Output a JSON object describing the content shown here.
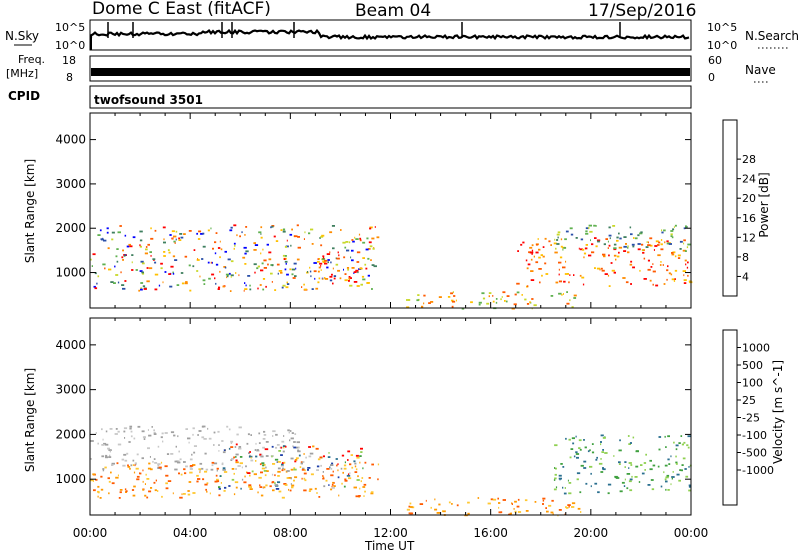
{
  "header": {
    "title": "Dome C East (fitACF)",
    "beam": "Beam 04",
    "date": "17/Sep/2016"
  },
  "strip_sky": {
    "left_label": "N.Sky",
    "right_label": "N.Search",
    "ticks": [
      "10^5",
      "10^0"
    ]
  },
  "strip_freq": {
    "left_label": "Freq.",
    "left_unit": "[MHz]",
    "left_ticks": [
      "18",
      "8"
    ],
    "right_label": "Nave",
    "right_ticks": [
      "60",
      "0"
    ]
  },
  "cpid": {
    "label": "CPID",
    "value": "twofsound 3501"
  },
  "x_axis": {
    "label": "Time UT",
    "ticks": [
      "00:00",
      "04:00",
      "08:00",
      "12:00",
      "16:00",
      "20:00",
      "00:00"
    ]
  },
  "colors": {
    "power": [
      "#0000ff",
      "#2a4fa8",
      "#3f7f5f",
      "#5fb04f",
      "#c8d82a",
      "#ffc000",
      "#ff8c00",
      "#ff5a00",
      "#ff0000"
    ],
    "velocity": [
      "#ff0000",
      "#ff5a00",
      "#ff9a00",
      "#ffc830",
      "#c8c8c8",
      "#a0a0a0",
      "#8fd050",
      "#3fa03f",
      "#2a6f8f",
      "#1f3fa8"
    ]
  },
  "chart_data": [
    {
      "type": "heatmap",
      "name": "power",
      "ylabel": "Slant Range [km]",
      "yticks": [
        1000,
        2000,
        3000,
        4000
      ],
      "ylim": [
        200,
        4600
      ],
      "xlim": [
        0,
        24
      ],
      "colorbar": {
        "label": "Power [dB]",
        "ticks": [
          "4",
          "8",
          "12",
          "16",
          "20",
          "24",
          "28"
        ]
      },
      "echo_regions": [
        {
          "t0": 0.0,
          "t1": 11.5,
          "r0": 600,
          "r1": 2100,
          "level": "mixed"
        },
        {
          "t0": 9.0,
          "t1": 11.0,
          "r0": 800,
          "r1": 1500,
          "level": "high"
        },
        {
          "t0": 12.5,
          "t1": 19.5,
          "r0": 200,
          "r1": 600,
          "level": "medium"
        },
        {
          "t0": 17.0,
          "t1": 24.0,
          "r0": 700,
          "r1": 1800,
          "level": "high"
        },
        {
          "t0": 18.5,
          "t1": 24.0,
          "r0": 1500,
          "r1": 2100,
          "level": "low"
        }
      ]
    },
    {
      "type": "heatmap",
      "name": "velocity",
      "ylabel": "Slant Range [km]",
      "yticks": [
        1000,
        2000,
        3000,
        4000
      ],
      "ylim": [
        200,
        4600
      ],
      "xlim": [
        0,
        24
      ],
      "colorbar": {
        "label": "Velocity [m s^-1]",
        "ticks": [
          "1000",
          "500",
          "100",
          "25",
          "-25",
          "-100",
          "-500",
          "-1000"
        ]
      },
      "echo_regions": [
        {
          "t0": 0.0,
          "t1": 8.5,
          "r0": 1200,
          "r1": 2200,
          "level": "ground"
        },
        {
          "t0": 0.0,
          "t1": 11.5,
          "r0": 600,
          "r1": 1400,
          "level": "negative"
        },
        {
          "t0": 5.0,
          "t1": 11.0,
          "r0": 800,
          "r1": 1800,
          "level": "mixed"
        },
        {
          "t0": 12.5,
          "t1": 20.0,
          "r0": 200,
          "r1": 600,
          "level": "negative"
        },
        {
          "t0": 18.5,
          "t1": 24.0,
          "r0": 700,
          "r1": 2000,
          "level": "positive"
        }
      ]
    }
  ]
}
